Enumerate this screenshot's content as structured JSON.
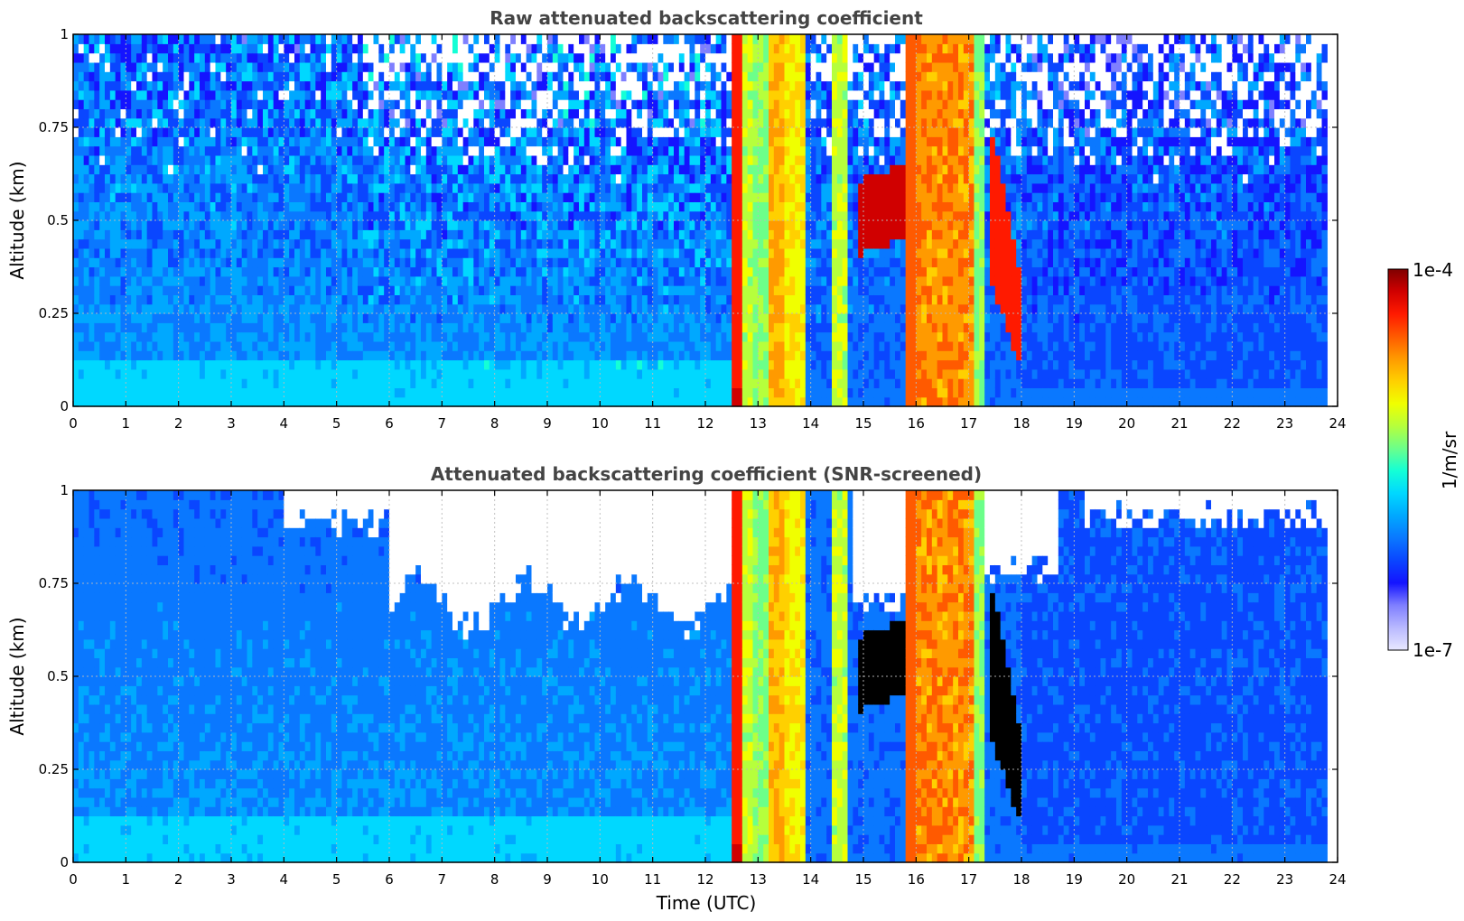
{
  "colors": {
    "title": "#444444",
    "colormap": [
      "#e8e8ff",
      "#b9b9ff",
      "#7f7fff",
      "#1414ff",
      "#0a46ff",
      "#0a78ff",
      "#00a8ff",
      "#00d8ff",
      "#14ffd6",
      "#6cff8a",
      "#b6ff3c",
      "#f0ff00",
      "#ffd000",
      "#ff9a00",
      "#ff5a00",
      "#ff1a00",
      "#d00000",
      "#7f0000"
    ]
  },
  "chart_data": [
    {
      "type": "heatmap",
      "title": "Raw attenuated backscattering coefficient",
      "xlabel": "",
      "ylabel": "Altitude (km)",
      "xlim": [
        0,
        24
      ],
      "ylim": [
        0,
        1
      ],
      "xticks": [
        "0",
        "1",
        "2",
        "3",
        "4",
        "5",
        "6",
        "7",
        "8",
        "9",
        "10",
        "11",
        "12",
        "13",
        "14",
        "15",
        "16",
        "17",
        "18",
        "19",
        "20",
        "21",
        "22",
        "23",
        "24"
      ],
      "yticks": [
        "0",
        "0.25",
        "0.5",
        "0.75",
        "1"
      ],
      "grid": true,
      "data_end_time": 23.8,
      "screened": false
    },
    {
      "type": "heatmap",
      "title": "Attenuated backscattering coefficient (SNR-screened)",
      "xlabel": "Time (UTC)",
      "ylabel": "Altitude (km)",
      "xlim": [
        0,
        24
      ],
      "ylim": [
        0,
        1
      ],
      "xticks": [
        "0",
        "1",
        "2",
        "3",
        "4",
        "5",
        "6",
        "7",
        "8",
        "9",
        "10",
        "11",
        "12",
        "13",
        "14",
        "15",
        "16",
        "17",
        "18",
        "19",
        "20",
        "21",
        "22",
        "23",
        "24"
      ],
      "yticks": [
        "0",
        "0.25",
        "0.5",
        "0.75",
        "1"
      ],
      "grid": true,
      "data_end_time": 23.8,
      "screened": true
    }
  ],
  "colorbar": {
    "label": "1/m/sr",
    "max_label": "1e-4",
    "min_label": "1e-7",
    "scale": "log",
    "range": [
      1e-07,
      0.0001
    ]
  }
}
